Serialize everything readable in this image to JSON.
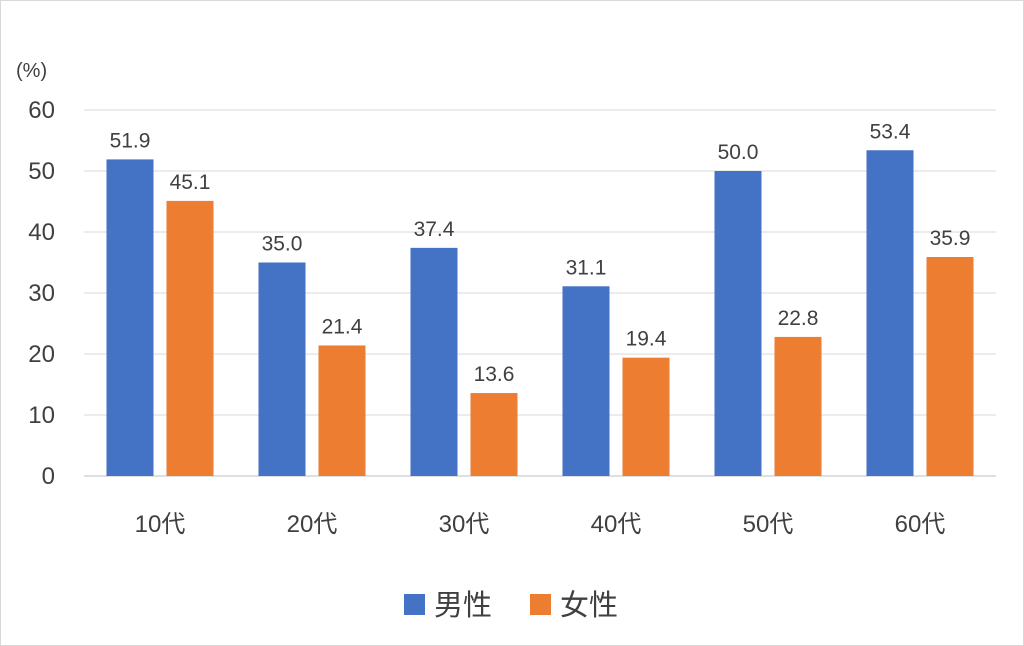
{
  "chart_data": {
    "type": "bar",
    "unit_label": "(%)",
    "categories": [
      "10代",
      "20代",
      "30代",
      "40代",
      "50代",
      "60代"
    ],
    "series": [
      {
        "name": "男性",
        "color": "#4472C4",
        "values": [
          51.9,
          35.0,
          37.4,
          31.1,
          50.0,
          53.4
        ]
      },
      {
        "name": "女性",
        "color": "#ED7D31",
        "values": [
          45.1,
          21.4,
          13.6,
          19.4,
          22.8,
          35.9
        ]
      }
    ],
    "data_labels": [
      [
        "51.9",
        "35.0",
        "37.4",
        "31.1",
        "50.0",
        "53.4"
      ],
      [
        "45.1",
        "21.4",
        "13.6",
        "19.4",
        "22.8",
        "35.9"
      ]
    ],
    "ylim": [
      0,
      60
    ],
    "yticks": [
      "0",
      "10",
      "20",
      "30",
      "40",
      "50",
      "60"
    ],
    "grid": true,
    "legend_position": "bottom"
  }
}
